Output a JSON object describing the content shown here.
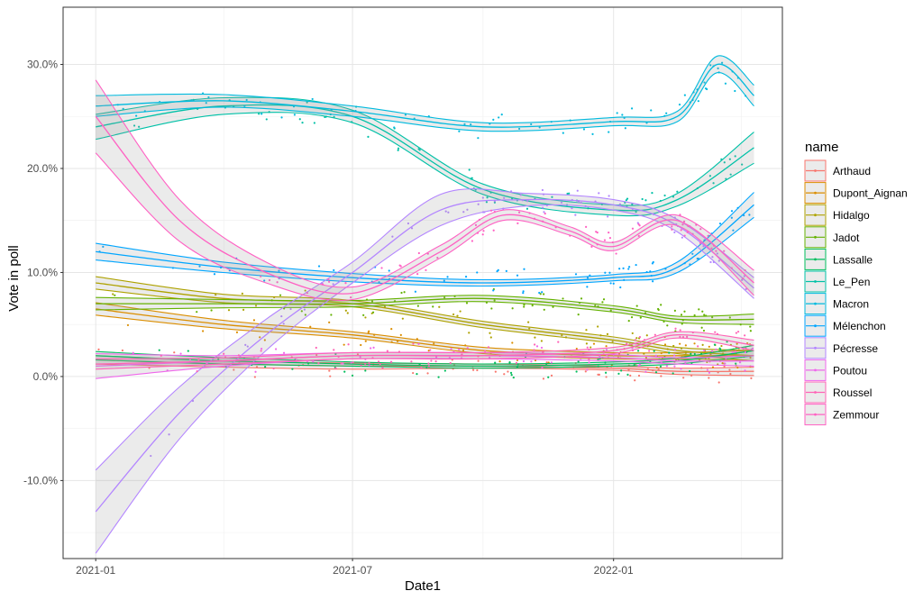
{
  "chart_data": {
    "type": "scatter",
    "title": "",
    "xlabel": "Date1",
    "ylabel": "Vote in poll",
    "grid": true,
    "legend_placement": "right",
    "legend_title": "name",
    "x_ticks": [
      "2021-01",
      "2021-07",
      "2022-01"
    ],
    "y_ticks": [
      "30.0%",
      "20.0%",
      "10.0%",
      "0.0%",
      "-10.0%"
    ],
    "y_tick_values": [
      30,
      20,
      10,
      0,
      -10
    ],
    "ylim": [
      -17.5,
      35.5
    ],
    "xlim": [
      "2020-12-09",
      "2022-04-30"
    ],
    "series": [
      {
        "name": "Arthaud",
        "color": "#F8766D",
        "x": [
          "2021-01-01",
          "2021-04-01",
          "2021-07-01",
          "2021-10-01",
          "2022-01-01",
          "2022-02-15",
          "2022-04-10"
        ],
        "y": [
          1.6,
          1.2,
          1.0,
          1.0,
          0.8,
          0.5,
          0.5
        ],
        "band": [
          0.4,
          0.3,
          0.3,
          0.2,
          0.2,
          0.3,
          0.4
        ]
      },
      {
        "name": "Dupont_Aignan",
        "color": "#DB8E00",
        "x": [
          "2021-01-01",
          "2021-04-01",
          "2021-07-01",
          "2021-10-01",
          "2022-01-01",
          "2022-02-15",
          "2022-04-10"
        ],
        "y": [
          6.5,
          5.0,
          4.0,
          2.5,
          2.0,
          2.0,
          2.0
        ],
        "band": [
          0.6,
          0.4,
          0.3,
          0.3,
          0.3,
          0.3,
          0.5
        ]
      },
      {
        "name": "Hidalgo",
        "color": "#AEA200",
        "x": [
          "2021-01-01",
          "2021-04-01",
          "2021-07-01",
          "2021-10-01",
          "2022-01-01",
          "2022-02-15",
          "2022-04-10"
        ],
        "y": [
          9.0,
          7.5,
          7.0,
          5.0,
          3.5,
          2.5,
          2.0
        ],
        "band": [
          0.6,
          0.4,
          0.3,
          0.3,
          0.3,
          0.3,
          0.5
        ]
      },
      {
        "name": "Jadot",
        "color": "#64B200",
        "x": [
          "2021-01-01",
          "2021-04-01",
          "2021-07-01",
          "2021-10-01",
          "2022-01-01",
          "2022-02-15",
          "2022-04-10"
        ],
        "y": [
          7.0,
          7.0,
          7.0,
          7.5,
          6.5,
          5.5,
          5.5
        ],
        "band": [
          0.6,
          0.4,
          0.3,
          0.3,
          0.3,
          0.3,
          0.5
        ]
      },
      {
        "name": "Lassalle",
        "color": "#00BD5C",
        "x": [
          "2021-01-01",
          "2021-04-01",
          "2021-07-01",
          "2021-10-01",
          "2022-01-01",
          "2022-02-15",
          "2022-04-10"
        ],
        "y": [
          2.0,
          1.5,
          1.2,
          1.0,
          1.2,
          1.5,
          2.5
        ],
        "band": [
          0.4,
          0.3,
          0.2,
          0.2,
          0.2,
          0.3,
          0.5
        ]
      },
      {
        "name": "Le_Pen",
        "color": "#00C1A7",
        "x": [
          "2021-01-01",
          "2021-04-01",
          "2021-07-01",
          "2021-10-01",
          "2022-01-01",
          "2022-02-15",
          "2022-04-10"
        ],
        "y": [
          24.0,
          26.0,
          25.0,
          18.0,
          16.0,
          17.0,
          22.0
        ],
        "band": [
          1.2,
          0.8,
          0.6,
          0.5,
          0.5,
          0.6,
          1.5
        ]
      },
      {
        "name": "Macron",
        "color": "#00BADE",
        "x": [
          "2021-01-01",
          "2021-04-01",
          "2021-07-01",
          "2021-10-01",
          "2022-01-01",
          "2022-02-15",
          "2022-03-15",
          "2022-04-10"
        ],
        "y": [
          26.0,
          26.5,
          25.5,
          24.0,
          24.5,
          25.0,
          30.0,
          27.0
        ],
        "band": [
          1.0,
          0.6,
          0.5,
          0.4,
          0.4,
          0.5,
          0.8,
          1.0
        ]
      },
      {
        "name": "Mélenchon",
        "color": "#00A6FF",
        "x": [
          "2021-01-01",
          "2021-04-01",
          "2021-07-01",
          "2021-10-01",
          "2022-01-01",
          "2022-02-15",
          "2022-04-10"
        ],
        "y": [
          12.0,
          10.5,
          9.5,
          9.0,
          9.5,
          10.5,
          16.5
        ],
        "band": [
          0.8,
          0.5,
          0.4,
          0.3,
          0.3,
          0.5,
          1.2
        ]
      },
      {
        "name": "Pécresse",
        "color": "#B385FF",
        "x": [
          "2021-01-01",
          "2021-03-01",
          "2021-05-01",
          "2021-07-01",
          "2021-09-01",
          "2021-11-01",
          "2022-01-01",
          "2022-02-15",
          "2022-04-10"
        ],
        "y": [
          -13.0,
          -3.5,
          4.0,
          10.0,
          16.0,
          17.0,
          16.5,
          14.5,
          8.5
        ],
        "band": [
          4.0,
          2.5,
          1.5,
          1.0,
          1.5,
          0.6,
          0.5,
          0.6,
          1.0
        ]
      },
      {
        "name": "Poutou",
        "color": "#EF67EB",
        "x": [
          "2021-01-01",
          "2021-04-01",
          "2021-07-01",
          "2021-10-01",
          "2022-01-01",
          "2022-02-15",
          "2022-04-10"
        ],
        "y": [
          1.0,
          1.5,
          2.0,
          2.0,
          1.8,
          1.5,
          1.5
        ],
        "band": [
          1.2,
          0.5,
          0.3,
          0.3,
          0.3,
          0.3,
          0.5
        ]
      },
      {
        "name": "Roussel",
        "color": "#FF63B6",
        "x": [
          "2021-01-01",
          "2021-04-01",
          "2021-07-01",
          "2021-10-01",
          "2022-01-01",
          "2022-02-15",
          "2022-04-10"
        ],
        "y": [
          1.2,
          1.5,
          2.0,
          2.0,
          2.5,
          4.0,
          3.0
        ],
        "band": [
          0.5,
          0.3,
          0.3,
          0.3,
          0.3,
          0.3,
          0.5
        ]
      },
      {
        "name": "Zemmour",
        "color": "#FF61C3",
        "x": [
          "2021-01-01",
          "2021-03-01",
          "2021-05-01",
          "2021-07-01",
          "2021-09-01",
          "2021-10-15",
          "2021-12-01",
          "2022-01-01",
          "2022-02-15",
          "2022-04-10"
        ],
        "y": [
          25.0,
          15.0,
          10.0,
          8.0,
          12.0,
          15.5,
          14.0,
          12.5,
          15.0,
          9.0
        ],
        "band": [
          3.5,
          2.0,
          1.0,
          0.6,
          0.6,
          0.5,
          0.4,
          0.4,
          0.5,
          1.2
        ]
      }
    ]
  }
}
